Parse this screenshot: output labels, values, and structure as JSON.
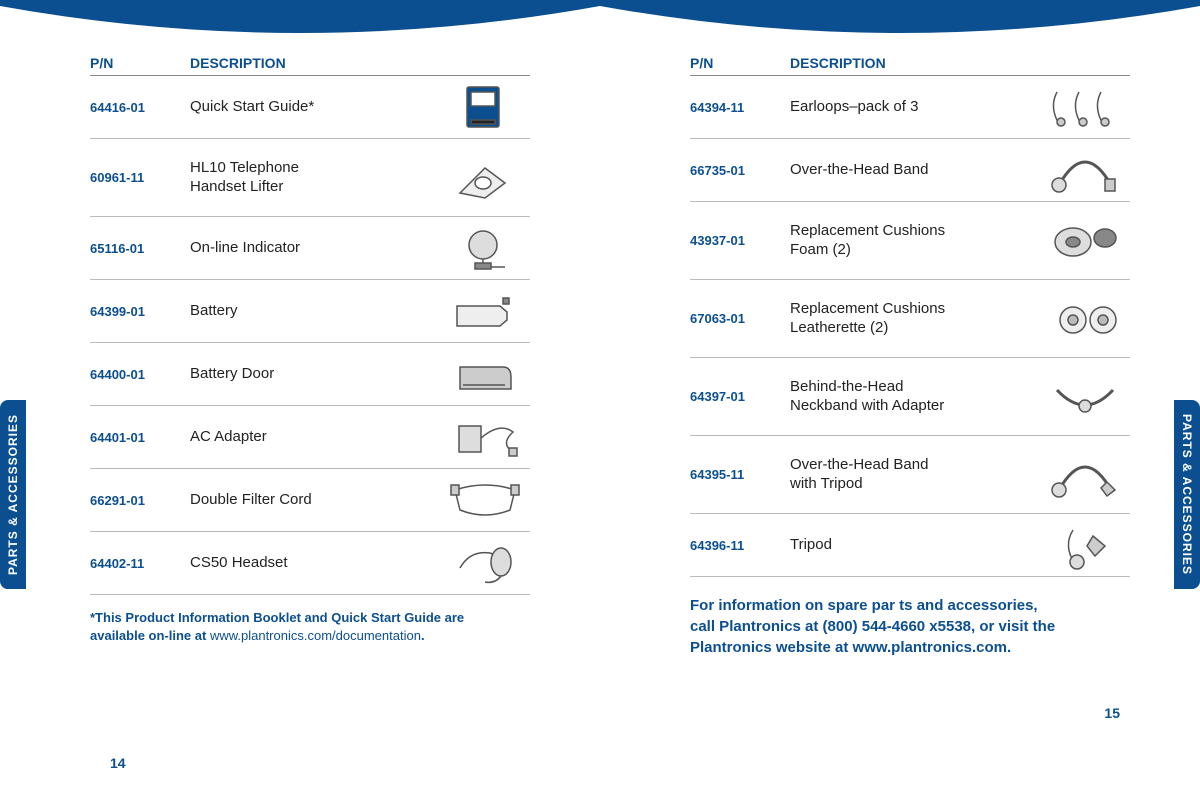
{
  "colors": {
    "brand_blue": "#0b4f91",
    "text": "#222222",
    "divider": "#bbbbbb",
    "header_divider": "#888888",
    "bg": "#ffffff"
  },
  "section_title": "Parts & Accessories",
  "side_tab_label": "PARTS & ACCESSORIES",
  "headers": {
    "pn": "P/N",
    "desc": "DESCRIPTION"
  },
  "left": {
    "page_number": "14",
    "rows": [
      {
        "pn": "64416-01",
        "desc": "Quick Start Guide*",
        "icon": "booklet"
      },
      {
        "pn": "60961-11",
        "desc": "HL10 Telephone\nHandset Lifter",
        "icon": "lifter"
      },
      {
        "pn": "65116-01",
        "desc": "On-line Indicator",
        "icon": "indicator"
      },
      {
        "pn": "64399-01",
        "desc": "Battery",
        "icon": "battery"
      },
      {
        "pn": "64400-01",
        "desc": "Battery Door",
        "icon": "batdoor"
      },
      {
        "pn": "64401-01",
        "desc": "AC Adapter",
        "icon": "acadapter"
      },
      {
        "pn": "66291-01",
        "desc": "Double Filter Cord",
        "icon": "cord"
      },
      {
        "pn": "64402-11",
        "desc": "CS50 Headset",
        "icon": "headset"
      }
    ],
    "footnote_a": "*This Product Information Booklet and Quick Start Guide are",
    "footnote_b": "available on-line at ",
    "footnote_url": "www.plantronics.com/documentation",
    "footnote_c": "."
  },
  "right": {
    "page_number": "15",
    "rows": [
      {
        "pn": "64394-11",
        "desc": "Earloops–pack of 3",
        "icon": "earloops"
      },
      {
        "pn": "66735-01",
        "desc": "Over-the-Head Band",
        "icon": "headband"
      },
      {
        "pn": "43937-01",
        "desc": "Replacement Cushions\nFoam (2)",
        "icon": "foam"
      },
      {
        "pn": "67063-01",
        "desc": "Replacement Cushions\nLeatherette (2)",
        "icon": "leatherette"
      },
      {
        "pn": "64397-01",
        "desc": "Behind-the-Head\nNeckband with Adapter",
        "icon": "neckband"
      },
      {
        "pn": "64395-11",
        "desc": "Over-the-Head Band\nwith Tripod",
        "icon": "headband2"
      },
      {
        "pn": "64396-11",
        "desc": "Tripod",
        "icon": "tripod"
      }
    ],
    "info_a": "For information on spare par ts and accessories,",
    "info_b": "call Plantronics at (800) 544-4660 x5538, or visit the",
    "info_c": "Plantronics website at ",
    "info_url": "www.plantronics.com",
    "info_d": "."
  }
}
